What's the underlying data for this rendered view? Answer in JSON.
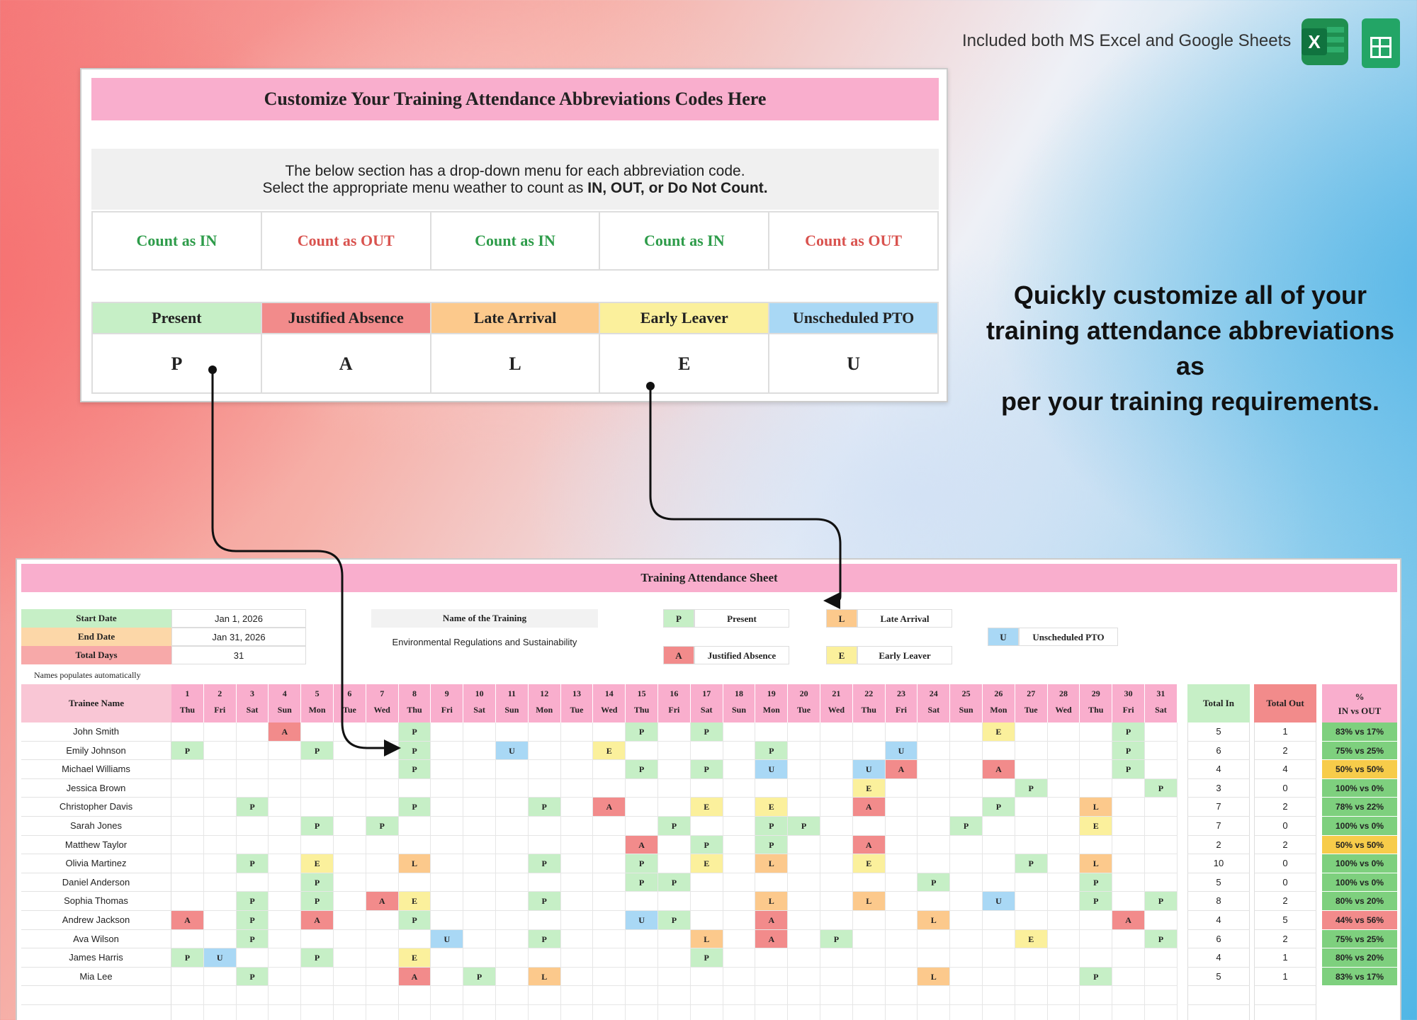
{
  "top_note": "Included both MS Excel and Google Sheets",
  "icons": {
    "excel": "excel-app-icon",
    "sheets": "google-sheets-app-icon",
    "excel_letter": "X"
  },
  "config_panel": {
    "title": "Customize Your Training Attendance Abbreviations Codes Here",
    "note_line1": "The below section has a drop-down menu for each abbreviation code.",
    "note_line2_prefix": "Select the appropriate menu weather to count as ",
    "note_line2_bold": "IN, OUT, or Do Not Count.",
    "counts": [
      "Count as IN",
      "Count as OUT",
      "Count as IN",
      "Count as IN",
      "Count as OUT"
    ],
    "codes": [
      {
        "name": "Present",
        "code": "P",
        "color": "#c6efc6"
      },
      {
        "name": "Justified Absence",
        "code": "A",
        "color": "#f28b8b"
      },
      {
        "name": "Late Arrival",
        "code": "L",
        "color": "#fcc98c"
      },
      {
        "name": "Early Leaver",
        "code": "E",
        "color": "#fbf09c"
      },
      {
        "name": "Unscheduled PTO",
        "code": "U",
        "color": "#a9d8f5"
      }
    ]
  },
  "tagline": [
    "Quickly customize all of your",
    "training attendance abbreviations as",
    "per your training requirements."
  ],
  "sheet": {
    "title": "Training Attendance Sheet",
    "start_label": "Start Date",
    "start_value": "Jan 1, 2026",
    "end_label": "End Date",
    "end_value": "Jan 31, 2026",
    "days_label": "Total Days",
    "days_value": "31",
    "training_label": "Name of the Training",
    "training_value": "Environmental Regulations and Sustainability",
    "auto_note": "Names populates automatically",
    "legend": {
      "P": "Present",
      "A": "Justified Absence",
      "L": "Late Arrival",
      "E": "Early Leaver",
      "U": "Unscheduled PTO"
    },
    "name_header": "Trainee Name",
    "total_in_header": "Total In",
    "total_out_header": "Total Out",
    "pct_header_1": "%",
    "pct_header_2": "IN vs OUT",
    "weekdays": [
      "Thu",
      "Fri",
      "Sat",
      "Sun",
      "Mon",
      "Tue",
      "Wed",
      "Thu",
      "Fri",
      "Sat",
      "Sun",
      "Mon",
      "Tue",
      "Wed",
      "Thu",
      "Fri",
      "Sat",
      "Sun",
      "Mon",
      "Tue",
      "Wed",
      "Thu",
      "Fri",
      "Sat",
      "Sun",
      "Mon",
      "Tue",
      "Wed",
      "Thu",
      "Fri",
      "Sat"
    ],
    "trainees": [
      {
        "name": "John Smith",
        "marks": {
          "4": "A",
          "8": "P",
          "15": "P",
          "17": "P",
          "26": "E",
          "30": "P"
        },
        "in": "5",
        "out": "1",
        "pct": "83% vs 17%",
        "pct_color": "#7ed07e"
      },
      {
        "name": "Emily Johnson",
        "marks": {
          "1": "P",
          "5": "P",
          "8": "P",
          "11": "U",
          "14": "E",
          "19": "P",
          "23": "U",
          "30": "P"
        },
        "in": "6",
        "out": "2",
        "pct": "75% vs 25%",
        "pct_color": "#7ed07e"
      },
      {
        "name": "Michael Williams",
        "marks": {
          "8": "P",
          "15": "P",
          "17": "P",
          "19": "U",
          "22": "U",
          "23": "A",
          "26": "A",
          "30": "P"
        },
        "in": "4",
        "out": "4",
        "pct": "50% vs 50%",
        "pct_color": "#f7cc4a"
      },
      {
        "name": "Jessica Brown",
        "marks": {
          "22": "E",
          "27": "P",
          "31": "P"
        },
        "in": "3",
        "out": "0",
        "pct": "100% vs 0%",
        "pct_color": "#7ed07e"
      },
      {
        "name": "Christopher Davis",
        "marks": {
          "3": "P",
          "8": "P",
          "12": "P",
          "14": "A",
          "17": "E",
          "19": "E",
          "22": "A",
          "26": "P",
          "29": "L"
        },
        "in": "7",
        "out": "2",
        "pct": "78% vs 22%",
        "pct_color": "#7ed07e"
      },
      {
        "name": "Sarah Jones",
        "marks": {
          "5": "P",
          "7": "P",
          "16": "P",
          "19": "P",
          "20": "P",
          "25": "P",
          "29": "E"
        },
        "in": "7",
        "out": "0",
        "pct": "100% vs 0%",
        "pct_color": "#7ed07e"
      },
      {
        "name": "Matthew Taylor",
        "marks": {
          "15": "A",
          "17": "P",
          "19": "P",
          "22": "A"
        },
        "in": "2",
        "out": "2",
        "pct": "50% vs 50%",
        "pct_color": "#f7cc4a"
      },
      {
        "name": "Olivia Martinez",
        "marks": {
          "3": "P",
          "5": "E",
          "8": "L",
          "12": "P",
          "15": "P",
          "17": "E",
          "19": "L",
          "22": "E",
          "27": "P",
          "29": "L"
        },
        "in": "10",
        "out": "0",
        "pct": "100% vs 0%",
        "pct_color": "#7ed07e"
      },
      {
        "name": "Daniel Anderson",
        "marks": {
          "5": "P",
          "15": "P",
          "16": "P",
          "24": "P",
          "29": "P"
        },
        "in": "5",
        "out": "0",
        "pct": "100% vs 0%",
        "pct_color": "#7ed07e"
      },
      {
        "name": "Sophia Thomas",
        "marks": {
          "3": "P",
          "5": "P",
          "7": "A",
          "8": "E",
          "12": "P",
          "19": "L",
          "22": "L",
          "26": "U",
          "29": "P",
          "31": "P"
        },
        "in": "8",
        "out": "2",
        "pct": "80% vs 20%",
        "pct_color": "#7ed07e"
      },
      {
        "name": "Andrew Jackson",
        "marks": {
          "1": "A",
          "3": "P",
          "5": "A",
          "8": "P",
          "15": "U",
          "16": "P",
          "19": "A",
          "24": "L",
          "30": "A"
        },
        "in": "4",
        "out": "5",
        "pct": "44% vs 56%",
        "pct_color": "#f28b8b"
      },
      {
        "name": "Ava Wilson",
        "marks": {
          "3": "P",
          "9": "U",
          "12": "P",
          "17": "L",
          "19": "A",
          "21": "P",
          "27": "E",
          "31": "P"
        },
        "in": "6",
        "out": "2",
        "pct": "75% vs 25%",
        "pct_color": "#7ed07e"
      },
      {
        "name": "James Harris",
        "marks": {
          "1": "P",
          "2": "U",
          "5": "P",
          "8": "E",
          "17": "P"
        },
        "in": "4",
        "out": "1",
        "pct": "80% vs 20%",
        "pct_color": "#7ed07e"
      },
      {
        "name": "Mia Lee",
        "marks": {
          "3": "P",
          "8": "A",
          "10": "P",
          "12": "L",
          "24": "L",
          "29": "P"
        },
        "in": "5",
        "out": "1",
        "pct": "83% vs 17%",
        "pct_color": "#7ed07e"
      }
    ]
  }
}
